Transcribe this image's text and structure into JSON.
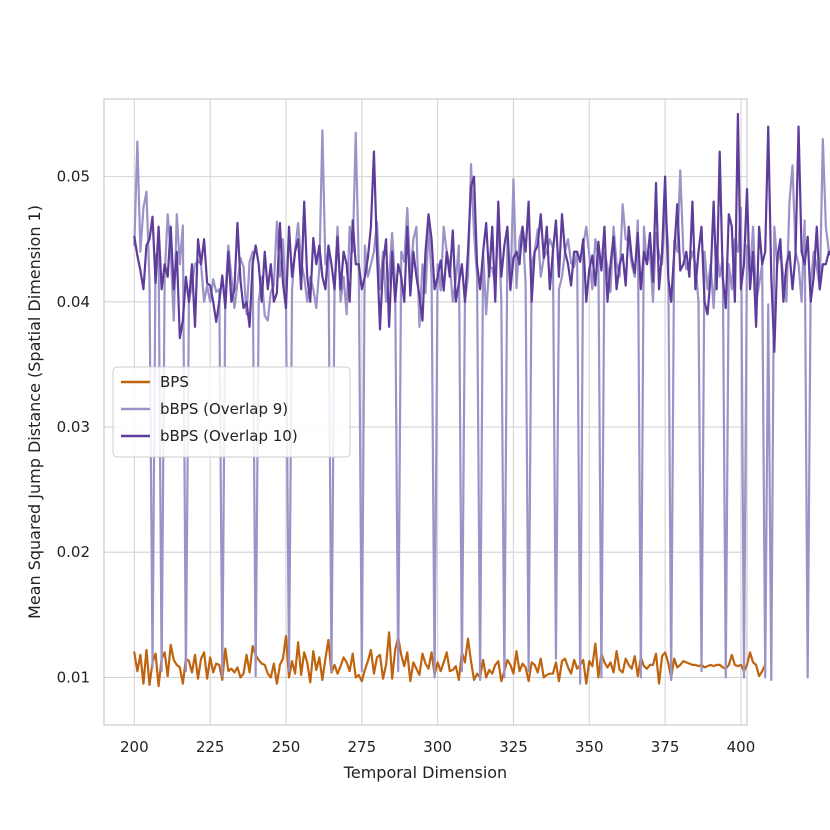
{
  "chart_data": {
    "type": "line",
    "title": "",
    "xlabel": "Temporal Dimension",
    "ylabel": "Mean Squared Jump Distance (Spatial Dimension 1)",
    "xlim": [
      190,
      402
    ],
    "ylim": [
      0.0062,
      0.0562
    ],
    "x_ticks": [
      200,
      225,
      250,
      275,
      300,
      325,
      350,
      375,
      400
    ],
    "y_ticks": [
      0.01,
      0.02,
      0.03,
      0.04,
      0.05
    ],
    "x_tick_labels": [
      "200",
      "225",
      "250",
      "275",
      "300",
      "325",
      "350",
      "375",
      "400"
    ],
    "y_tick_labels": [
      "0.01",
      "0.02",
      "0.03",
      "0.04",
      "0.05"
    ],
    "grid": true,
    "legend_position": "center-left",
    "x_start": 200,
    "x_step": 1,
    "series": [
      {
        "name": "BPS",
        "color": "#c0630f",
        "values": [
          0.012,
          0.0105,
          0.0118,
          0.0095,
          0.0122,
          0.0094,
          0.0112,
          0.0119,
          0.0093,
          0.0115,
          0.012,
          0.0101,
          0.0126,
          0.0114,
          0.011,
          0.0108,
          0.0095,
          0.0115,
          0.0113,
          0.0104,
          0.0118,
          0.0099,
          0.0115,
          0.012,
          0.0099,
          0.0116,
          0.0104,
          0.0111,
          0.011,
          0.0098,
          0.0123,
          0.0105,
          0.0107,
          0.0104,
          0.0108,
          0.01,
          0.0103,
          0.0118,
          0.0104,
          0.0125,
          0.0118,
          0.0114,
          0.0111,
          0.011,
          0.0103,
          0.01,
          0.0111,
          0.0095,
          0.011,
          0.0115,
          0.0133,
          0.01,
          0.0113,
          0.0103,
          0.0128,
          0.0102,
          0.012,
          0.0112,
          0.0096,
          0.0121,
          0.0106,
          0.0116,
          0.0098,
          0.0115,
          0.013,
          0.0104,
          0.011,
          0.0103,
          0.0109,
          0.0116,
          0.0112,
          0.0105,
          0.0119,
          0.01,
          0.0102,
          0.0097,
          0.0106,
          0.0113,
          0.0122,
          0.0103,
          0.0116,
          0.0118,
          0.0099,
          0.011,
          0.0136,
          0.0099,
          0.0122,
          0.0132,
          0.0118,
          0.0109,
          0.012,
          0.0097,
          0.0112,
          0.0107,
          0.0102,
          0.0119,
          0.0111,
          0.0107,
          0.012,
          0.0102,
          0.0112,
          0.0105,
          0.0112,
          0.012,
          0.0105,
          0.0106,
          0.0109,
          0.0098,
          0.012,
          0.0112,
          0.0131,
          0.0113,
          0.0098,
          0.0103,
          0.01,
          0.0114,
          0.01,
          0.0106,
          0.0103,
          0.011,
          0.0113,
          0.0097,
          0.0105,
          0.0114,
          0.011,
          0.0103,
          0.0121,
          0.0105,
          0.0111,
          0.0108,
          0.0097,
          0.0112,
          0.011,
          0.0104,
          0.0115,
          0.01,
          0.0102,
          0.0103,
          0.0103,
          0.0112,
          0.0097,
          0.0113,
          0.0115,
          0.0108,
          0.0103,
          0.0114,
          0.0107,
          0.011,
          0.0114,
          0.0095,
          0.0113,
          0.0109,
          0.0127,
          0.01,
          0.0119,
          0.0112,
          0.0108,
          0.0112,
          0.0104,
          0.0121,
          0.0106,
          0.0104,
          0.0115,
          0.011,
          0.0107,
          0.0117,
          0.0101,
          0.0116,
          0.0109,
          0.0107,
          0.011,
          0.011,
          0.0119,
          0.0095,
          0.0117,
          0.012,
          0.0112,
          0.01,
          0.0115,
          0.0108,
          0.011,
          0.0113,
          0.0112,
          0.0111,
          0.011,
          0.011,
          0.0109,
          0.011,
          0.0108,
          0.0109,
          0.011,
          0.0109,
          0.011,
          0.011,
          0.0108,
          0.0107,
          0.011,
          0.0118,
          0.011,
          0.0109,
          0.011,
          0.0105,
          0.011,
          0.012,
          0.0112,
          0.011,
          0.0101,
          0.0105,
          0.011
        ]
      },
      {
        "name": "bBPS (Overlap 9)",
        "color": "#9b93c8",
        "values": [
          0.0445,
          0.0528,
          0.044,
          0.0475,
          0.0488,
          0.0416,
          0.0108,
          0.0437,
          0.044,
          0.0105,
          0.042,
          0.047,
          0.044,
          0.0385,
          0.047,
          0.043,
          0.0461,
          0.0105,
          0.04,
          0.0414,
          0.043,
          0.0433,
          0.043,
          0.04,
          0.0413,
          0.04,
          0.0418,
          0.0408,
          0.041,
          0.0101,
          0.0405,
          0.0445,
          0.042,
          0.0395,
          0.0415,
          0.0435,
          0.0428,
          0.039,
          0.0432,
          0.044,
          0.0101,
          0.04,
          0.042,
          0.0389,
          0.0385,
          0.0408,
          0.0413,
          0.0464,
          0.042,
          0.045,
          0.04,
          0.0105,
          0.041,
          0.0441,
          0.0463,
          0.0432,
          0.042,
          0.04,
          0.042,
          0.041,
          0.0395,
          0.0427,
          0.0537,
          0.043,
          0.044,
          0.0105,
          0.041,
          0.046,
          0.04,
          0.042,
          0.039,
          0.046,
          0.044,
          0.0535,
          0.043,
          0.0105,
          0.0445,
          0.042,
          0.043,
          0.044,
          0.0464,
          0.041,
          0.044,
          0.04,
          0.042,
          0.0455,
          0.0413,
          0.0105,
          0.044,
          0.0432,
          0.0475,
          0.042,
          0.045,
          0.046,
          0.038,
          0.043,
          0.0407,
          0.046,
          0.042,
          0.01,
          0.043,
          0.0409,
          0.046,
          0.044,
          0.043,
          0.04,
          0.0418,
          0.0445,
          0.0105,
          0.04,
          0.042,
          0.051,
          0.0455,
          0.042,
          0.0098,
          0.044,
          0.039,
          0.0428,
          0.0427,
          0.0413,
          0.047,
          0.04,
          0.01,
          0.045,
          0.0409,
          0.0498,
          0.0411,
          0.045,
          0.046,
          0.0415,
          0.0105,
          0.043,
          0.044,
          0.0458,
          0.042,
          0.0435,
          0.044,
          0.045,
          0.0443,
          0.0115,
          0.041,
          0.042,
          0.044,
          0.045,
          0.0431,
          0.0428,
          0.044,
          0.0095,
          0.0445,
          0.046,
          0.0437,
          0.041,
          0.045,
          0.0435,
          0.01,
          0.044,
          0.0428,
          0.0408,
          0.046,
          0.0431,
          0.042,
          0.0478,
          0.045,
          0.0449,
          0.043,
          0.042,
          0.0465,
          0.01,
          0.046,
          0.043,
          0.044,
          0.04,
          0.0455,
          0.0438,
          0.043,
          0.0476,
          0.0445,
          0.0098,
          0.0449,
          0.044,
          0.0505,
          0.044,
          0.0426,
          0.043,
          0.044,
          0.043,
          0.04,
          0.0105,
          0.044,
          0.041,
          0.043,
          0.0395,
          0.0445,
          0.042,
          0.0435,
          0.01,
          0.043,
          0.041,
          0.045,
          0.044,
          0.0475,
          0.01,
          0.0445,
          0.042,
          0.046,
          0.04,
          0.0414,
          0.043,
          0.01,
          0.0398,
          0.0098,
          0.046,
          0.043,
          0.044,
          0.042,
          0.04,
          0.048,
          0.0509,
          0.044,
          0.043,
          0.04,
          0.0465,
          0.01,
          0.0415,
          0.044,
          0.0428,
          0.041,
          0.053,
          0.046,
          0.044
        ]
      },
      {
        "name": "bBPS  (Overlap 10)",
        "color": "#5e3c99",
        "values": [
          0.0452,
          0.0437,
          0.0425,
          0.041,
          0.0445,
          0.045,
          0.0468,
          0.0415,
          0.046,
          0.041,
          0.043,
          0.042,
          0.046,
          0.041,
          0.044,
          0.0371,
          0.0385,
          0.042,
          0.04,
          0.043,
          0.038,
          0.045,
          0.043,
          0.045,
          0.0415,
          0.0413,
          0.04,
          0.0384,
          0.04,
          0.0421,
          0.0395,
          0.044,
          0.04,
          0.041,
          0.0463,
          0.0417,
          0.0395,
          0.04,
          0.038,
          0.043,
          0.0445,
          0.043,
          0.04,
          0.044,
          0.041,
          0.043,
          0.04,
          0.0407,
          0.0463,
          0.0415,
          0.0395,
          0.046,
          0.042,
          0.044,
          0.045,
          0.041,
          0.048,
          0.042,
          0.04,
          0.0451,
          0.043,
          0.0445,
          0.042,
          0.041,
          0.0445,
          0.043,
          0.041,
          0.0452,
          0.041,
          0.044,
          0.043,
          0.04,
          0.0465,
          0.043,
          0.043,
          0.041,
          0.042,
          0.0435,
          0.046,
          0.052,
          0.044,
          0.0378,
          0.043,
          0.045,
          0.038,
          0.044,
          0.04,
          0.043,
          0.042,
          0.04,
          0.046,
          0.0405,
          0.044,
          0.042,
          0.0405,
          0.0385,
          0.044,
          0.047,
          0.045,
          0.041,
          0.042,
          0.0433,
          0.0409,
          0.044,
          0.042,
          0.0457,
          0.04,
          0.0415,
          0.043,
          0.04,
          0.044,
          0.0492,
          0.05,
          0.043,
          0.041,
          0.044,
          0.0463,
          0.042,
          0.046,
          0.04,
          0.048,
          0.042,
          0.0445,
          0.046,
          0.041,
          0.0435,
          0.044,
          0.043,
          0.046,
          0.044,
          0.048,
          0.04,
          0.044,
          0.0445,
          0.047,
          0.0435,
          0.046,
          0.041,
          0.044,
          0.0465,
          0.042,
          0.047,
          0.044,
          0.043,
          0.0413,
          0.044,
          0.044,
          0.0432,
          0.045,
          0.04,
          0.0426,
          0.0437,
          0.0413,
          0.0448,
          0.0425,
          0.046,
          0.04,
          0.043,
          0.0452,
          0.041,
          0.043,
          0.0438,
          0.0413,
          0.046,
          0.0435,
          0.0423,
          0.0455,
          0.041,
          0.044,
          0.043,
          0.0455,
          0.0416,
          0.0495,
          0.041,
          0.044,
          0.05,
          0.042,
          0.04,
          0.044,
          0.0478,
          0.0425,
          0.043,
          0.044,
          0.042,
          0.048,
          0.041,
          0.044,
          0.046,
          0.04,
          0.039,
          0.042,
          0.048,
          0.041,
          0.052,
          0.042,
          0.0395,
          0.047,
          0.046,
          0.04,
          0.055,
          0.041,
          0.043,
          0.049,
          0.041,
          0.044,
          0.038,
          0.046,
          0.043,
          0.044,
          0.054,
          0.042,
          0.036,
          0.0435,
          0.045,
          0.04,
          0.043,
          0.044,
          0.041,
          0.0438,
          0.054,
          0.044,
          0.043,
          0.0452,
          0.04,
          0.042,
          0.046,
          0.041,
          0.043,
          0.043,
          0.044,
          0.0436,
          0.044,
          0.05,
          0.0434,
          0.043,
          0.044
        ]
      }
    ]
  }
}
